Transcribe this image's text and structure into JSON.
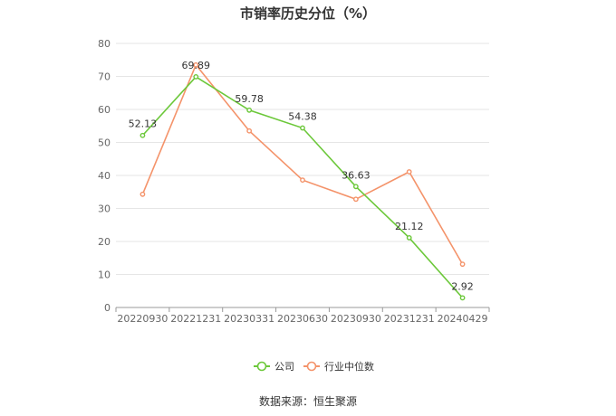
{
  "chart_data": {
    "type": "line",
    "title": "市销率历史分位（%）",
    "categories": [
      "20220930",
      "20221231",
      "20230331",
      "20230630",
      "20230930",
      "20231231",
      "20240429"
    ],
    "series": [
      {
        "name": "公司",
        "color": "#6cc83a",
        "values": [
          52.13,
          69.89,
          59.78,
          54.38,
          36.63,
          21.12,
          2.92
        ],
        "labels": [
          "52.13",
          "69.89",
          "59.78",
          "54.38",
          "36.63",
          "21.12",
          "2.92"
        ]
      },
      {
        "name": "行业中位数",
        "color": "#f4936a",
        "values": [
          34.3,
          73.5,
          53.5,
          38.6,
          32.8,
          41.1,
          13.1
        ]
      }
    ],
    "ylim": [
      0,
      80
    ],
    "yticks": [
      "0",
      "10",
      "20",
      "30",
      "40",
      "50",
      "60",
      "70",
      "80"
    ],
    "grid": true,
    "legend_position": "bottom"
  },
  "source_text": "数据来源：恒生聚源"
}
